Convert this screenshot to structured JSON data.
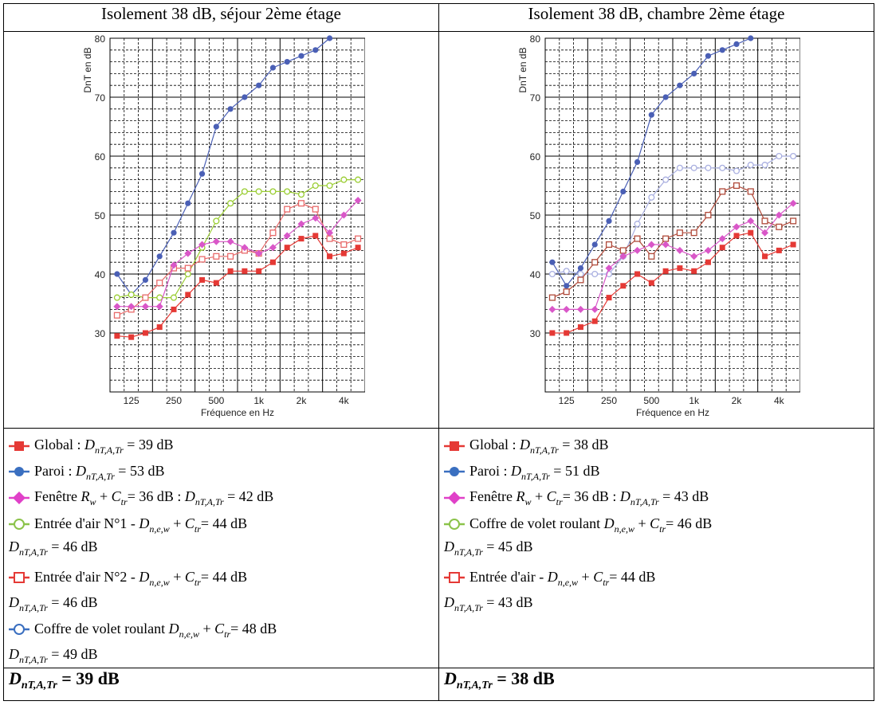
{
  "headers": [
    "Isolement 38 dB, séjour 2ème étage",
    "Isolement 38 dB, chambre 2ème étage"
  ],
  "colors": {
    "global": "#e53935",
    "paroi": "#4a5fb5",
    "fenetre": "#d957c8",
    "entree1": "#9acd32",
    "entree2": "#e86a6a",
    "coffre": "#a9afe0",
    "chambre_coffre": "#b04a3a",
    "chambre_entree": "#c06a2a"
  },
  "chart_data": [
    {
      "type": "line",
      "ylabel": "DnT en dB",
      "xlabel": "Fréquence en Hz",
      "x_ticks": [
        "125",
        "250",
        "500",
        "1k",
        "2k",
        "4k"
      ],
      "x": [
        100,
        125,
        160,
        200,
        250,
        315,
        400,
        500,
        630,
        800,
        1000,
        1250,
        1600,
        2000,
        2500,
        3150,
        4000,
        5000
      ],
      "ylim": [
        20,
        80
      ],
      "y_ticks": [
        30,
        40,
        50,
        60,
        70,
        80
      ],
      "grid": true,
      "series": [
        {
          "key": "paroi",
          "marker": "circle",
          "values": [
            40,
            36.5,
            39,
            43,
            47,
            52,
            57,
            65,
            68,
            70,
            72,
            75,
            76,
            77,
            78,
            80,
            null,
            null
          ]
        },
        {
          "key": "entree1",
          "marker": "ocircle",
          "values": [
            36,
            36.5,
            36,
            36,
            36,
            40,
            44.5,
            49,
            52,
            54,
            54,
            54,
            54,
            53.5,
            55,
            55,
            56,
            56
          ]
        },
        {
          "key": "entree2",
          "marker": "osquare",
          "values": [
            33,
            34,
            36,
            38.5,
            41,
            41,
            42.5,
            43,
            43,
            44,
            43.5,
            47,
            51,
            52,
            51,
            46,
            45,
            46
          ]
        },
        {
          "key": "fenetre",
          "marker": "diamond",
          "values": [
            34.5,
            34.5,
            34.5,
            34.5,
            41.5,
            43.5,
            45,
            45.5,
            45.5,
            44.5,
            43.5,
            44.5,
            46.5,
            48.5,
            49.5,
            47,
            50,
            52.5
          ]
        },
        {
          "key": "global",
          "marker": "square",
          "values": [
            29.5,
            29.3,
            30,
            31,
            34,
            36.5,
            39,
            38.5,
            40.5,
            40.5,
            40.5,
            42,
            44.5,
            46,
            46.5,
            43,
            43.5,
            44.5
          ]
        }
      ]
    },
    {
      "type": "line",
      "ylabel": "DnT en dB",
      "xlabel": "Fréquence en Hz",
      "x_ticks": [
        "125",
        "250",
        "500",
        "1k",
        "2k",
        "4k"
      ],
      "x": [
        100,
        125,
        160,
        200,
        250,
        315,
        400,
        500,
        630,
        800,
        1000,
        1250,
        1600,
        2000,
        2500,
        3150,
        4000,
        5000
      ],
      "ylim": [
        20,
        80
      ],
      "y_ticks": [
        30,
        40,
        50,
        60,
        70,
        80
      ],
      "grid": true,
      "series": [
        {
          "key": "paroi",
          "marker": "circle",
          "values": [
            42,
            38,
            41,
            45,
            49,
            54,
            59,
            67,
            70,
            72,
            74,
            77,
            78,
            79,
            80,
            null,
            null,
            null
          ]
        },
        {
          "key": "coffre",
          "marker": "ocircle",
          "values": [
            40,
            40.5,
            40,
            40,
            40,
            43,
            48.5,
            53,
            56,
            58,
            58,
            58,
            58,
            57.5,
            58.5,
            58.5,
            60,
            60
          ]
        },
        {
          "key": "chambre_coffre",
          "marker": "osquare",
          "values": [
            36,
            37,
            39,
            42,
            45,
            44,
            46,
            43,
            46,
            47,
            47,
            50,
            54,
            55,
            54,
            49,
            48,
            49
          ]
        },
        {
          "key": "fenetre",
          "marker": "diamond",
          "values": [
            34,
            34,
            34,
            34,
            41,
            43,
            44,
            45,
            45,
            44,
            43,
            44,
            46,
            48,
            49,
            47,
            50,
            52
          ]
        },
        {
          "key": "global",
          "marker": "square",
          "values": [
            30,
            30,
            31,
            32,
            36,
            38,
            40,
            38.5,
            40.5,
            41,
            40.5,
            42,
            44.5,
            46.5,
            47,
            43,
            44,
            45
          ]
        }
      ]
    }
  ],
  "legend_left": {
    "global": {
      "name": "Global : ",
      "sym": "D",
      "sub": "nT,A,Tr",
      "rest": " = 39 dB"
    },
    "paroi": {
      "name": "Paroi : ",
      "sym": "D",
      "sub": "nT,A,Tr",
      "rest": " = 53 dB"
    },
    "fenetre": {
      "name": "Fenêtre ",
      "r": "R",
      "rsub": "w",
      "plus": " + ",
      "c": "C",
      "csub": "tr",
      "mid": "= 36 dB : ",
      "sym": "D",
      "sub": "nT,A,Tr",
      "rest": " = 42 dB"
    },
    "entree1": {
      "name": "Entrée d'air N°1 - ",
      "d": "D",
      "dsub": "n,e,w",
      "plus": " + ",
      "c": "C",
      "csub": "tr",
      "rest": "= 44 dB",
      "sym": "D",
      "sub": "nT,A,Tr",
      "rest2": " = 46 dB"
    },
    "entree2": {
      "name": "Entrée d'air N°2 - ",
      "d": "D",
      "dsub": "n,e,w",
      "plus": " + ",
      "c": "C",
      "csub": "tr",
      "rest": "= 44 dB",
      "sym": "D",
      "sub": "nT,A,Tr",
      "rest2": " = 46 dB"
    },
    "coffre": {
      "name": "Coffre de volet roulant ",
      "d": "D",
      "dsub": "n,e,w",
      "plus": " + ",
      "c": "C",
      "csub": "tr",
      "rest": "= 48 dB",
      "sym": "D",
      "sub": "nT,A,Tr",
      "rest2": " = 49 dB"
    }
  },
  "legend_right": {
    "global": {
      "name": "Global : ",
      "sym": "D",
      "sub": "nT,A,Tr",
      "rest": " = 38 dB"
    },
    "paroi": {
      "name": "Paroi : ",
      "sym": "D",
      "sub": "nT,A,Tr",
      "rest": " = 51 dB"
    },
    "fenetre": {
      "name": "Fenêtre ",
      "r": "R",
      "rsub": "w",
      "plus": " + ",
      "c": "C",
      "csub": "tr",
      "mid": "= 36 dB : ",
      "sym": "D",
      "sub": "nT,A,Tr",
      "rest": " = 43 dB"
    },
    "coffre": {
      "name": "Coffre de volet roulant ",
      "d": "D",
      "dsub": "n,e,w",
      "plus": " + ",
      "c": "C",
      "csub": "tr",
      "rest": "= 46 dB",
      "sym": "D",
      "sub": "nT,A,Tr",
      "rest2": " = 45 dB"
    },
    "entree": {
      "name": "Entrée d'air - ",
      "d": "D",
      "dsub": "n,e,w",
      "plus": " + ",
      "c": "C",
      "csub": "tr",
      "rest": "= 44 dB",
      "sym": "D",
      "sub": "nT,A,Tr",
      "rest2": " = 43 dB"
    }
  },
  "totals": [
    {
      "sym": "D",
      "sub": "nT,A,Tr",
      "rest": " = 39 dB"
    },
    {
      "sym": "D",
      "sub": "nT,A,Tr",
      "rest": " = 38 dB"
    }
  ]
}
